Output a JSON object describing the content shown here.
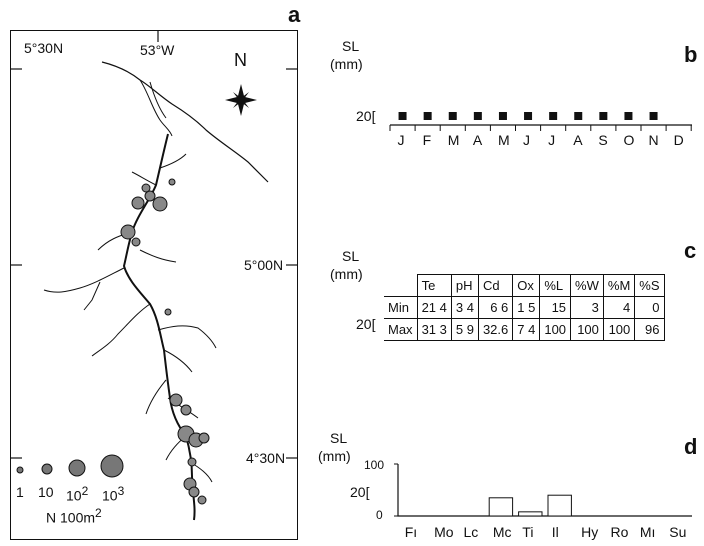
{
  "panel_a": {
    "letter": "a",
    "lat_labels": [
      "5°30N",
      "5°00N",
      "4°30N"
    ],
    "lon_label": "53°W",
    "north_label": "N",
    "legend": {
      "sizes": [
        "1",
        "10",
        "10",
        "10"
      ],
      "size_exponents": [
        "",
        "",
        "2",
        "3"
      ],
      "unit": "N 100m",
      "unit_exp": "2"
    }
  },
  "panel_b": {
    "letter": "b",
    "ylabel": "SL",
    "yunit": "(mm)",
    "ytick": "20",
    "months": [
      "J",
      "F",
      "M",
      "A",
      "M",
      "J",
      "J",
      "A",
      "S",
      "O",
      "N",
      "D"
    ],
    "present": [
      true,
      true,
      true,
      true,
      true,
      true,
      true,
      true,
      true,
      true,
      true,
      false
    ]
  },
  "panel_c": {
    "letter": "c",
    "ylabel": "SL",
    "yunit": "(mm)",
    "ytick": "20",
    "columns": [
      "Te",
      "pH",
      "Cd",
      "Ox",
      "%L",
      "%W",
      "%M",
      "%S"
    ],
    "rows": [
      {
        "label": "Min",
        "values": [
          "21 4",
          "3 4",
          "6 6",
          "1 5",
          "15",
          "3",
          "4",
          "0"
        ]
      },
      {
        "label": "Max",
        "values": [
          "31 3",
          "5 9",
          "32.6",
          "7 4",
          "100",
          "100",
          "100",
          "96"
        ]
      }
    ]
  },
  "panel_d": {
    "letter": "d",
    "ylabel": "SL",
    "yunit": "(mm)",
    "ytick_100": "100",
    "ytick_20": "20",
    "ytick_0": "0"
  },
  "chart_data": {
    "type": "bar",
    "categories": [
      "Fı",
      "Mo",
      "Lc",
      "Mc",
      "Ti",
      "Il",
      "Hy",
      "Ro",
      "Mı",
      "Su"
    ],
    "values": [
      0,
      0,
      0,
      35,
      8,
      40,
      0,
      0,
      0,
      0
    ],
    "ylim": [
      0,
      100
    ]
  }
}
